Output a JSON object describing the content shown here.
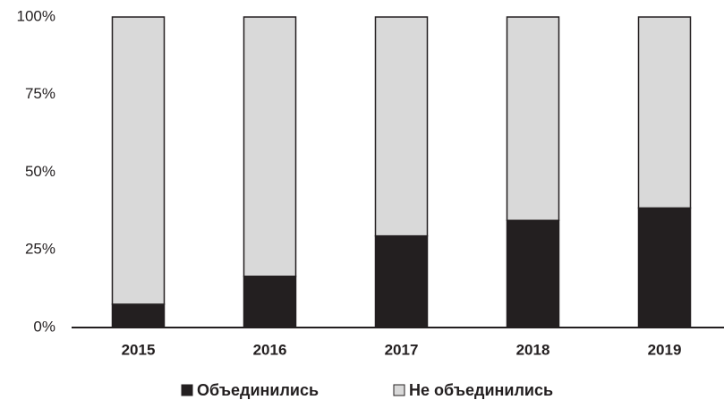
{
  "chart_data": {
    "type": "stacked_bar",
    "categories": [
      "2015",
      "2016",
      "2017",
      "2018",
      "2019"
    ],
    "series": [
      {
        "name": "Объединились",
        "color": "#231f20",
        "values": [
          7.5,
          16.5,
          29.5,
          34.5,
          38.5
        ]
      },
      {
        "name": "Не объединились",
        "color": "#d9d9d9",
        "values": [
          92.5,
          83.5,
          70.5,
          65.5,
          61.5
        ]
      }
    ],
    "ylim": [
      0,
      100
    ],
    "yticks": [
      {
        "value": 0,
        "label": "0%"
      },
      {
        "value": 25,
        "label": "25%"
      },
      {
        "value": 50,
        "label": "50%"
      },
      {
        "value": 75,
        "label": "75%"
      },
      {
        "value": 100,
        "label": "100%"
      }
    ],
    "legend": "bottom"
  }
}
